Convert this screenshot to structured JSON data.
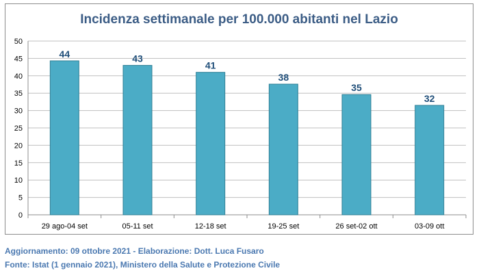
{
  "chart_data": {
    "type": "bar",
    "title": "Incidenza settimanale per 100.000 abitanti nel Lazio",
    "categories": [
      "29 ago-04 set",
      "05-11 set",
      "12-18 set",
      "19-25 set",
      "26 set-02 ott",
      "03-09 ott"
    ],
    "values": [
      44.3,
      43.0,
      41.0,
      37.6,
      34.6,
      31.5
    ],
    "data_labels": [
      "44",
      "43",
      "41",
      "38",
      "35",
      "32"
    ],
    "ylim": [
      0,
      50
    ],
    "yticks": [
      0,
      5,
      10,
      15,
      20,
      25,
      30,
      35,
      40,
      45,
      50
    ],
    "grid": true,
    "colors": {
      "bar": "#4bacc6",
      "bar_border": "#2f7f95",
      "label": "#1f4e79",
      "grid": "#bfbfbf"
    }
  },
  "footer": {
    "line1": "Aggiornamento: 09 ottobre 2021 - Elaborazione: Dott. Luca Fusaro",
    "line2": "Fonte: Istat (1 gennaio 2021), Ministero della Salute e Protezione Civile"
  }
}
